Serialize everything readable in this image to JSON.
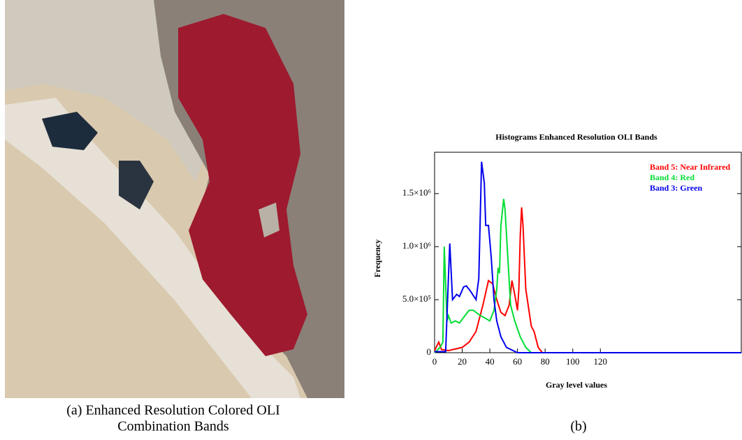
{
  "chart_data": {
    "type": "line",
    "title": "Histograms Enhanced Resolution OLI Bands",
    "xlabel": "Gray level values",
    "ylabel": "Frequency",
    "xlim": [
      0,
      222
    ],
    "xticks": [
      0,
      20,
      40,
      60,
      80,
      100,
      120
    ],
    "ylim": [
      0,
      1890000
    ],
    "yticks": [
      0,
      {
        "value": 500000,
        "label": "5.0×10⁵"
      },
      {
        "value": 1000000,
        "label": "1.0×10⁶"
      },
      {
        "value": 1500000,
        "label": "1.5×10⁶"
      }
    ],
    "legend": "upper right",
    "series": [
      {
        "name": "Band 5: Near Infrared",
        "color": "#ff0000",
        "x": [
          0,
          3,
          5,
          10,
          20,
          25,
          30,
          35,
          39,
          42,
          45,
          48,
          51,
          54,
          56,
          58,
          60,
          61,
          62,
          63,
          64,
          66,
          70,
          72,
          75,
          78,
          222
        ],
        "values": [
          20000,
          100000,
          30000,
          20000,
          50000,
          100000,
          200000,
          450000,
          680000,
          650000,
          500000,
          380000,
          350000,
          450000,
          680000,
          550000,
          400000,
          600000,
          1100000,
          1370000,
          1200000,
          600000,
          250000,
          200000,
          50000,
          0,
          0
        ]
      },
      {
        "name": "Band 4: Red",
        "color": "#00dd33",
        "x": [
          0,
          4,
          6,
          7,
          9,
          10,
          12,
          15,
          18,
          22,
          25,
          28,
          32,
          36,
          40,
          43,
          45,
          46,
          47,
          48,
          50,
          51,
          53,
          55,
          58,
          62,
          66,
          70,
          222
        ],
        "values": [
          0,
          50000,
          100000,
          1000000,
          300000,
          350000,
          280000,
          300000,
          280000,
          350000,
          400000,
          400000,
          360000,
          330000,
          300000,
          400000,
          600000,
          800000,
          750000,
          1200000,
          1450000,
          1350000,
          900000,
          450000,
          300000,
          150000,
          50000,
          0,
          0
        ]
      },
      {
        "name": "Band 3: Green",
        "color": "#0000ee",
        "x": [
          0,
          8,
          10,
          11,
          13,
          16,
          18,
          21,
          23,
          26,
          30,
          32,
          34,
          36,
          37,
          39,
          41,
          43,
          45,
          48,
          52,
          60,
          222
        ],
        "values": [
          10000,
          10000,
          700000,
          1030000,
          500000,
          550000,
          530000,
          620000,
          630000,
          580000,
          500000,
          700000,
          1800000,
          1600000,
          1200000,
          1200000,
          900000,
          500000,
          300000,
          150000,
          50000,
          0,
          0
        ]
      }
    ]
  },
  "figure": {
    "caption_a": [
      "(a) Enhanced Resolution Colored OLI",
      "Combination Bands"
    ],
    "caption_b": "(b)"
  }
}
